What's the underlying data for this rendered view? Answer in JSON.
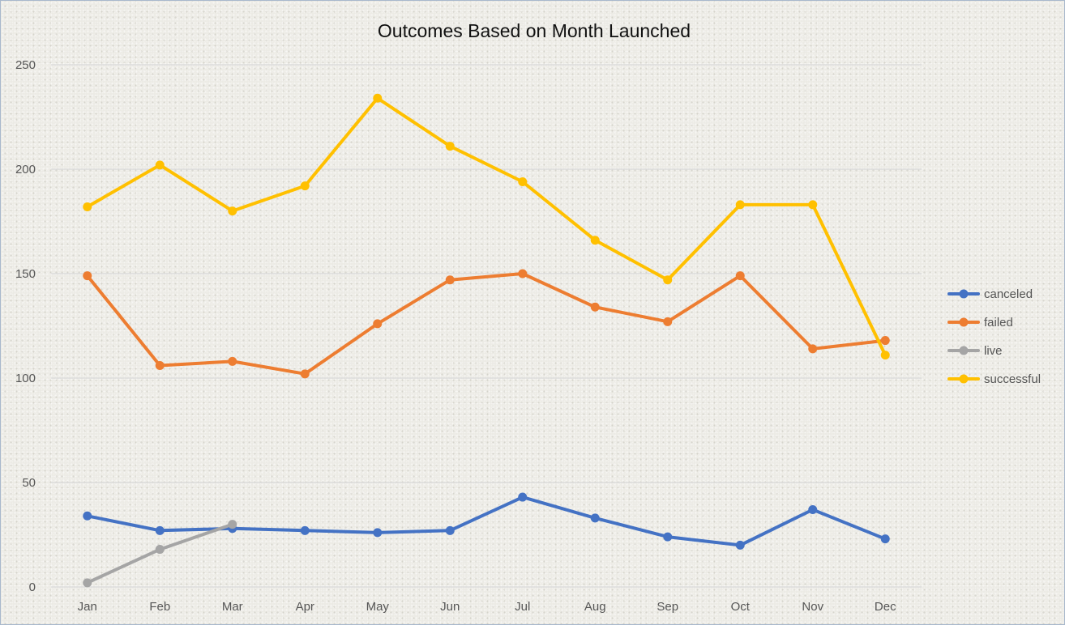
{
  "chart_data": {
    "type": "line",
    "title": "Outcomes Based on Month Launched",
    "xlabel": "",
    "ylabel": "",
    "categories": [
      "Jan",
      "Feb",
      "Mar",
      "Apr",
      "May",
      "Jun",
      "Jul",
      "Aug",
      "Sep",
      "Oct",
      "Nov",
      "Dec"
    ],
    "ylim": [
      0,
      250
    ],
    "yticks": [
      0,
      50,
      100,
      150,
      200,
      250
    ],
    "grid": true,
    "legend_position": "right",
    "series": [
      {
        "name": "canceled",
        "color": "#4472c4",
        "values": [
          34,
          27,
          28,
          27,
          26,
          27,
          43,
          33,
          24,
          20,
          37,
          23
        ]
      },
      {
        "name": "failed",
        "color": "#ed7d31",
        "values": [
          149,
          106,
          108,
          102,
          126,
          147,
          150,
          134,
          127,
          149,
          114,
          118
        ]
      },
      {
        "name": "live",
        "color": "#a5a5a5",
        "values": [
          2,
          18,
          30,
          null,
          null,
          null,
          null,
          null,
          null,
          null,
          null,
          null
        ]
      },
      {
        "name": "successful",
        "color": "#ffc000",
        "values": [
          182,
          202,
          180,
          192,
          234,
          211,
          194,
          166,
          147,
          183,
          183,
          111
        ]
      }
    ]
  }
}
